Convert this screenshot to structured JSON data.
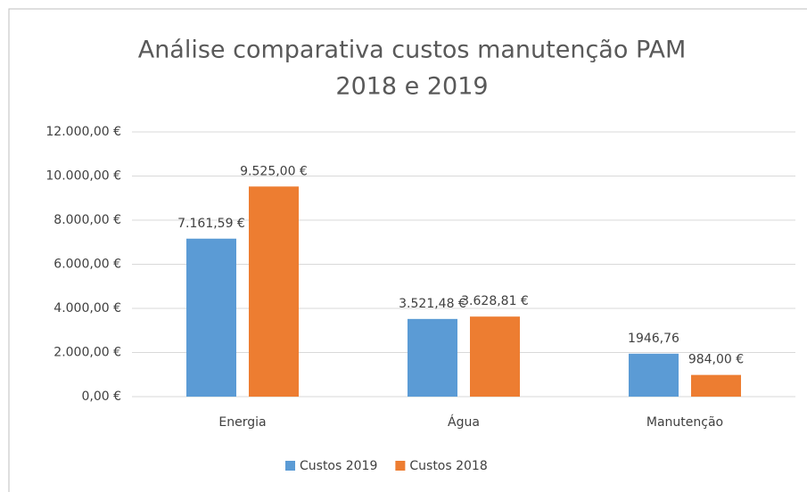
{
  "chart_data": {
    "type": "bar",
    "title": [
      "Análise comparativa custos manutenção PAM",
      "2018 e 2019"
    ],
    "categories": [
      "Energia",
      "Água",
      "Manutenção"
    ],
    "series": [
      {
        "name": "Custos 2019",
        "color": "#5b9bd5",
        "values": [
          7161.59,
          3521.48,
          1946.76
        ],
        "value_labels": [
          "7.161,59 €",
          "3.521,48 €",
          "1946,76"
        ]
      },
      {
        "name": "Custos 2018",
        "color": "#ed7d31",
        "values": [
          9525,
          3628.81,
          984
        ],
        "value_labels": [
          "9.525,00 €",
          "3.628,81 €",
          "984,00 €"
        ]
      }
    ],
    "ylim": [
      0,
      12000
    ],
    "yticks": [
      {
        "value": 0,
        "label": "0,00 €"
      },
      {
        "value": 2000,
        "label": "2.000,00 €"
      },
      {
        "value": 4000,
        "label": "4.000,00 €"
      },
      {
        "value": 6000,
        "label": "6.000,00 €"
      },
      {
        "value": 8000,
        "label": "8.000,00 €"
      },
      {
        "value": 10000,
        "label": "10.000,00 €"
      },
      {
        "value": 12000,
        "label": "12.000,00 €"
      }
    ],
    "grid": true,
    "legend": "bottom"
  }
}
